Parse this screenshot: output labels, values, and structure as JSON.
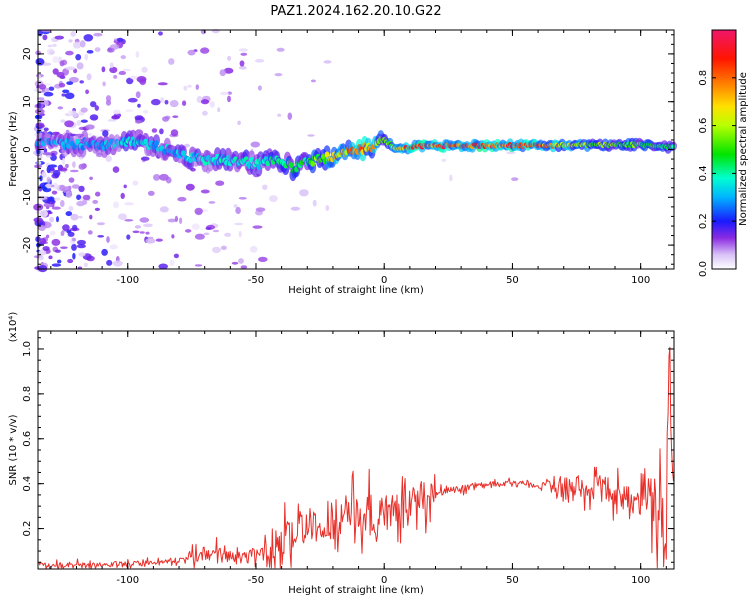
{
  "figure": {
    "title": "PAZ1.2024.162.20.10.G22"
  },
  "chart_data": [
    {
      "type": "heatmap",
      "xlabel": "Height of straight line (km)",
      "ylabel": "Frequency (Hz)",
      "xlim": [
        -135,
        113
      ],
      "ylim": [
        -25,
        25
      ],
      "xticks": [
        -100,
        -50,
        0,
        50,
        100
      ],
      "yticks": [
        -20,
        -10,
        0,
        10,
        20
      ],
      "colorbar": {
        "label": "Normalized spectral amplitude",
        "range": [
          0,
          1
        ],
        "ticks": [
          0.0,
          0.2,
          0.4,
          0.6,
          0.8
        ]
      },
      "ridge": {
        "x": [
          -135,
          -110,
          -100,
          -90,
          -80,
          -70,
          -60,
          -50,
          -40,
          -35,
          -30,
          -20,
          -10,
          -5,
          0,
          5,
          10,
          20,
          40,
          60,
          80,
          100,
          113
        ],
        "y": [
          1.5,
          1.0,
          1.5,
          1.0,
          -1.0,
          -2.0,
          -2.5,
          -3.0,
          -2.0,
          -4.0,
          -2.5,
          -1.5,
          0.0,
          0.5,
          2.0,
          0.0,
          0.5,
          0.8,
          0.8,
          0.8,
          1.0,
          1.0,
          0.5
        ],
        "amplitude": [
          0.3,
          0.35,
          0.4,
          0.35,
          0.35,
          0.4,
          0.4,
          0.4,
          0.45,
          0.5,
          0.5,
          0.7,
          0.85,
          0.8,
          0.55,
          0.8,
          0.9,
          0.95,
          0.95,
          0.9,
          0.6,
          0.55,
          0.5
        ]
      }
    },
    {
      "type": "line",
      "xlabel": "Height of straight line (km)",
      "ylabel": "SNR (10 * v/v)",
      "yscale_label": "(x10⁴)",
      "xlim": [
        -135,
        113
      ],
      "ylim": [
        0.02,
        1.08
      ],
      "xticks": [
        -100,
        -50,
        0,
        50,
        100
      ],
      "yticks": [
        0.2,
        0.4,
        0.6,
        0.8,
        1.0
      ],
      "series": [
        {
          "color": "#e8302a",
          "x": [
            -135,
            -100,
            -90,
            -80,
            -70,
            -65,
            -60,
            -55,
            -50,
            -45,
            -40,
            -35,
            -30,
            -25,
            -20,
            -15,
            -10,
            -5,
            0,
            5,
            10,
            15,
            20,
            25,
            30,
            35,
            40,
            45,
            50,
            55,
            60,
            65,
            70,
            75,
            80,
            85,
            90,
            95,
            100,
            105,
            108,
            110,
            111,
            113
          ],
          "y": [
            0.04,
            0.04,
            0.05,
            0.06,
            0.09,
            0.1,
            0.08,
            0.07,
            0.08,
            0.1,
            0.14,
            0.18,
            0.2,
            0.22,
            0.24,
            0.26,
            0.27,
            0.27,
            0.26,
            0.28,
            0.3,
            0.33,
            0.36,
            0.37,
            0.38,
            0.39,
            0.39,
            0.4,
            0.4,
            0.4,
            0.39,
            0.4,
            0.38,
            0.38,
            0.38,
            0.38,
            0.36,
            0.33,
            0.32,
            0.3,
            0.25,
            0.12,
            1.05,
            0.4
          ]
        }
      ]
    }
  ]
}
